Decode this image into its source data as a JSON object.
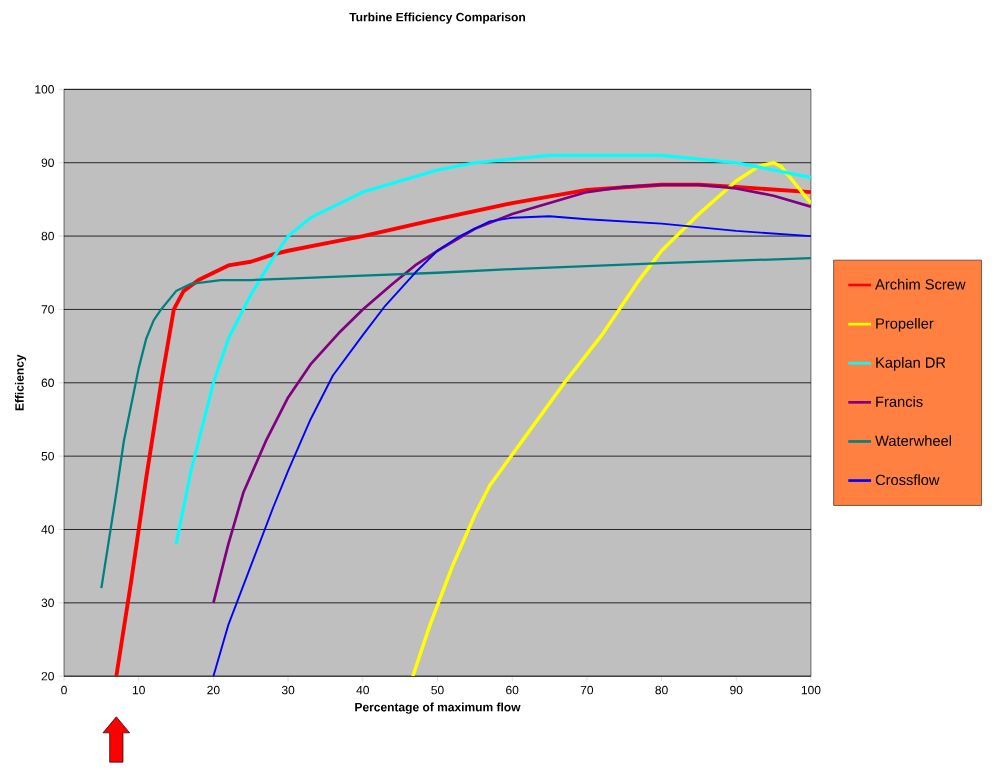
{
  "chart_data": {
    "type": "line",
    "title": "Turbine Efficiency Comparison",
    "xlabel": "Percentage of maximum flow",
    "ylabel": "Efficiency",
    "xlim": [
      0,
      100
    ],
    "xticks": [
      0,
      10,
      20,
      30,
      40,
      50,
      60,
      70,
      80,
      90,
      100
    ],
    "ylim": [
      20,
      100
    ],
    "yticks": [
      20,
      30,
      40,
      50,
      60,
      70,
      80,
      90,
      100
    ],
    "grid": "y",
    "legend": "right",
    "marker": "none",
    "line_style": "solid",
    "series": [
      {
        "name": "Archim Screw",
        "color": "#ff0000",
        "x": [
          7,
          9,
          11,
          13,
          14.7,
          16,
          18,
          20,
          22,
          25,
          28,
          30,
          35,
          40,
          50,
          60,
          70,
          80,
          85,
          90,
          100
        ],
        "values": [
          20,
          33,
          47,
          60,
          70,
          72.5,
          74,
          75,
          76,
          76.5,
          77.5,
          78,
          79,
          80,
          82.3,
          84.5,
          86.3,
          87,
          87,
          86.7,
          86
        ]
      },
      {
        "name": "Propeller",
        "color": "#ffff00",
        "x": [
          46.7,
          49,
          52,
          55,
          57,
          62,
          67,
          72,
          77,
          80,
          85,
          90,
          93,
          95,
          96,
          98,
          100
        ],
        "values": [
          20,
          27,
          35,
          42,
          46,
          53,
          60,
          66.5,
          74,
          78,
          83,
          87.5,
          89.5,
          90,
          89.5,
          87,
          84.5
        ]
      },
      {
        "name": "Kaplan DR",
        "color": "#00ffff",
        "x": [
          15,
          17,
          20,
          22,
          25,
          28,
          30,
          33,
          37,
          40,
          45,
          50,
          55,
          60,
          65,
          80,
          90,
          100
        ],
        "values": [
          38,
          48,
          60,
          66,
          72,
          77,
          80,
          82.5,
          84.5,
          86,
          87.5,
          89,
          90,
          90.5,
          91,
          91,
          90,
          88
        ]
      },
      {
        "name": "Francis",
        "color": "#800080",
        "x": [
          20,
          22,
          24,
          27,
          30,
          33,
          37,
          40,
          44,
          47,
          50,
          55,
          60,
          65,
          70,
          75,
          80,
          85,
          90,
          95,
          100
        ],
        "values": [
          30,
          38,
          45,
          52,
          58,
          62.5,
          67,
          70,
          73.5,
          76,
          78,
          81,
          83,
          84.5,
          86,
          86.7,
          87,
          87,
          86.5,
          85.5,
          84
        ]
      },
      {
        "name": "Waterwheel",
        "color": "#008080",
        "x": [
          5,
          7,
          8,
          9,
          10,
          11,
          12,
          13,
          15,
          17,
          21,
          25,
          30,
          40,
          50,
          60,
          70,
          80,
          100
        ],
        "values": [
          32,
          45,
          52,
          57,
          62,
          66,
          68.5,
          70,
          72.5,
          73.5,
          74,
          74,
          74.2,
          74.6,
          75,
          75.5,
          75.9,
          76.3,
          77
        ]
      },
      {
        "name": "Crossflow",
        "color": "#0000ff",
        "x": [
          20,
          22,
          25,
          28,
          30,
          33,
          36,
          40,
          43,
          47,
          50,
          53,
          57,
          60,
          65,
          70,
          80,
          90,
          100
        ],
        "values": [
          20,
          27,
          35,
          43,
          48,
          55,
          61,
          66.5,
          70.5,
          75,
          78,
          80,
          82,
          82.5,
          82.7,
          82.3,
          81.7,
          80.7,
          80
        ]
      }
    ]
  }
}
